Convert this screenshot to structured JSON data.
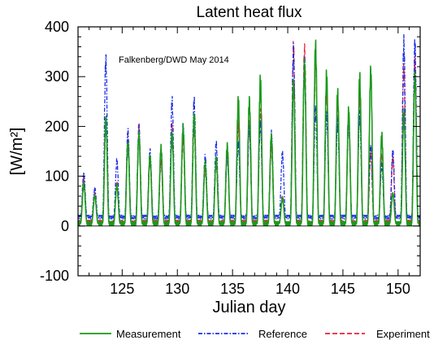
{
  "chart_data": {
    "type": "line",
    "title": "Latent heat flux",
    "annotation": "Falkenberg/DWD   May 2014",
    "xlabel": "Julian day",
    "ylabel": "[W/m²]",
    "xlim": [
      121,
      152
    ],
    "ylim": [
      -100,
      400
    ],
    "x_ticks": [
      125,
      130,
      135,
      140,
      145,
      150
    ],
    "y_ticks": [
      -100,
      0,
      100,
      200,
      300,
      400
    ],
    "grid": false,
    "legend_position": "bottom",
    "daily_peak_day": [
      121.5,
      122.5,
      123.5,
      124.5,
      125.5,
      126.5,
      127.5,
      128.5,
      129.5,
      130.5,
      131.5,
      132.5,
      133.5,
      134.5,
      135.5,
      136.5,
      137.5,
      138.5,
      139.5,
      140.5,
      141.5,
      142.5,
      143.5,
      144.5,
      145.5,
      146.5,
      147.5,
      148.5,
      149.5,
      150.5,
      151.5
    ],
    "series": [
      {
        "name": "Measurement",
        "color": "#1a9a1a",
        "dash": "solid",
        "night_baseline": 5,
        "daily_peaks": [
          85,
          60,
          215,
          80,
          165,
          180,
          140,
          155,
          185,
          195,
          220,
          125,
          135,
          160,
          250,
          250,
          290,
          180,
          55,
          285,
          320,
          360,
          300,
          265,
          230,
          295,
          310,
          180,
          65,
          225,
          300
        ]
      },
      {
        "name": "Reference",
        "color": "#1a2ee8",
        "dash": "dashdot",
        "night_baseline": 18,
        "daily_peaks": [
          105,
          75,
          335,
          130,
          190,
          195,
          150,
          150,
          250,
          200,
          250,
          140,
          165,
          135,
          165,
          195,
          205,
          185,
          145,
          350,
          330,
          230,
          225,
          205,
          210,
          220,
          160,
          120,
          150,
          365,
          365
        ]
      },
      {
        "name": "Experiment",
        "color": "#e8243a",
        "dash": "dashed",
        "night_baseline": 8,
        "daily_peaks": [
          95,
          65,
          200,
          85,
          175,
          200,
          130,
          130,
          195,
          175,
          195,
          115,
          125,
          145,
          200,
          205,
          225,
          160,
          60,
          355,
          355,
          340,
          270,
          245,
          215,
          255,
          145,
          140,
          135,
          315,
          330
        ]
      }
    ]
  }
}
